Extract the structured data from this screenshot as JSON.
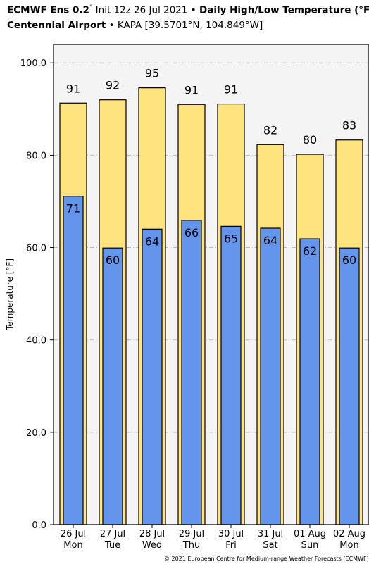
{
  "header": {
    "line1_bold": "ECMWF Ens 0.2",
    "line1_deg": "°",
    "line1_init": " Init 12z 26 Jul 2021",
    "line1_sep": " • ",
    "line1_product": "Daily High/Low Temperature (°F",
    "line2_bold": "Centennial Airport",
    "line2_sep": " • ",
    "line2_loc": "KAPA [39.5701°N, 104.849°W]"
  },
  "footer": {
    "copyright": "© 2021 European Centre for Medium-range Weather Forecasts (ECMWF). T"
  },
  "colors": {
    "high": "#ffe37e",
    "low": "#6495ed",
    "plot_bg": "#f4f4f4",
    "grid": "#bbbbbb"
  },
  "chart_data": {
    "type": "bar",
    "categories": [
      "26 Jul\nMon",
      "27 Jul\nTue",
      "28 Jul\nWed",
      "29 Jul\nThu",
      "30 Jul\nFri",
      "31 Jul\nSat",
      "01 Aug\nSun",
      "02 Aug\nMon"
    ],
    "series": [
      {
        "values": [
          91.3,
          92.0,
          94.6,
          91.0,
          91.1,
          82.3,
          80.2,
          83.3
        ],
        "labels": [
          "91",
          "92",
          "95",
          "91",
          "91",
          "82",
          "80",
          "83"
        ]
      },
      {
        "values": [
          71.1,
          59.9,
          64.0,
          65.9,
          64.6,
          64.2,
          61.9,
          59.9
        ],
        "labels": [
          "71",
          "60",
          "64",
          "66",
          "65",
          "64",
          "62",
          "60"
        ]
      }
    ],
    "ylabel": "Temperature [°F]",
    "ylim": [
      0,
      100
    ],
    "yticks": [
      "0.0",
      "20.0",
      "40.0",
      "60.0",
      "80.0",
      "100.0"
    ],
    "grid": true
  }
}
